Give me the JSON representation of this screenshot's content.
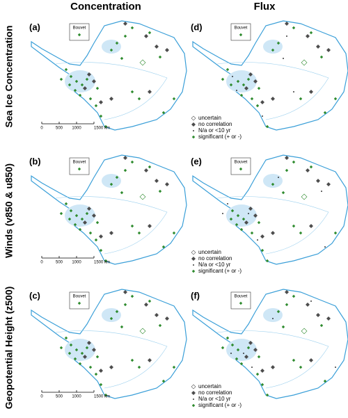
{
  "columns": [
    "Concentration",
    "Flux"
  ],
  "rows": [
    "Sea Ice Concentration",
    "Winds (v850 & u850)",
    "Geopotential Height (z500)"
  ],
  "panels": [
    {
      "label": "(a)",
      "inset": "Bouvet"
    },
    {
      "label": "(b)",
      "inset": "Bouvet"
    },
    {
      "label": "(c)",
      "inset": "Bouvet"
    },
    {
      "label": "(d)",
      "inset": "Bouvet"
    },
    {
      "label": "(e)",
      "inset": "Bouvet"
    },
    {
      "label": "(f)",
      "inset": "Bouvet"
    }
  ],
  "scale_bar": [
    "0",
    "500",
    "1000",
    "1500 km"
  ],
  "legend": [
    "uncertain",
    "no correlation",
    "N/a or <10 yr",
    "significant (+ or -)"
  ]
}
